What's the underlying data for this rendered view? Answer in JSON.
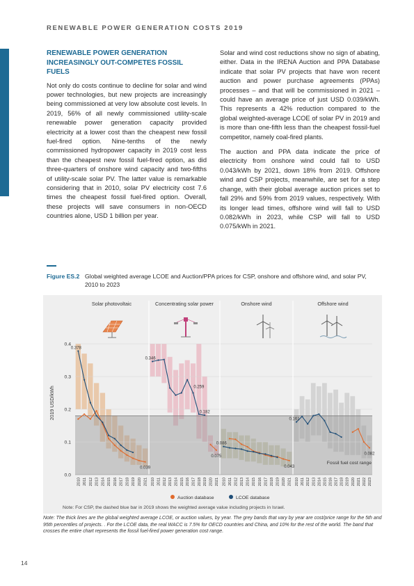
{
  "header": {
    "title": "RENEWABLE POWER GENERATION COSTS 2019"
  },
  "section": {
    "heading": "RENEWABLE POWER GENERATION INCREASINGLY OUT-COMPETES FOSSIL FUELS",
    "para1": "Not only do costs continue to decline for solar and wind power technologies, but new projects are increasingly being commissioned at very low absolute cost levels. In 2019, 56% of all newly commissioned utility-scale renewable power generation capacity provided electricity at a lower cost than the cheapest new fossil fuel-fired option. Nine-tenths of the newly commissioned hydropower capacity in 2019 cost less than the cheapest new fossil fuel-fired option, as did three-quarters of onshore wind capacity and two-fifths of utility-scale solar PV. The latter value is remarkable considering that in 2010, solar PV electricity cost 7.6 times the cheapest fossil fuel-fired option. Overall, these projects will save consumers in non-OECD countries alone, USD 1 billion per year.",
    "para2": "Solar and wind cost reductions show no sign of abating, either. Data in the IRENA Auction and PPA Database indicate that solar PV projects that have won recent auction and power purchase agreements (PPAs) processes – and that will be commissioned in 2021 – could have an average price of just USD 0.039/kWh. This represents a 42% reduction compared to the global weighted-average LCOE of solar PV in 2019 and is more than one-fifth less than the cheapest fossil-fuel competitor, namely coal-fired plants.",
    "para3": "The auction and PPA data indicate the price of electricity from onshore wind could fall to USD 0.043/kWh by 2021, down 18% from 2019. Offshore wind and CSP projects, meanwhile, are set for a step change, with their global average auction prices set to fall 29% and 59% from 2019 values, respectively. With its longer lead times, offshore wind will fall to USD 0.082/kWh in 2023, while CSP will fall to USD 0.075/kWh in 2021."
  },
  "figure": {
    "number": "Figure ES.2",
    "caption": "Global weighted average LCOE and Auction/PPA prices for CSP, onshore and offshore wind, and solar PV, 2010 to 2023",
    "chart_note": "Note: For CSP, the dashed blue bar in 2019 shows the weighted average value including projects in Israel.",
    "footnote": "Note: The thick lines are the global weighted average LCOE, or auction values, by year. The grey bands that vary by year are cost/price range for the 5th and 95th percentiles of projects. . For the LCOE data, the real WACC is 7.5% for OECD countries and China, and 10% for the rest of the world. The band that crosses the entire chart represents the fossil fuel-fired power generation cost range."
  },
  "page": {
    "number": "14"
  },
  "chart_data": {
    "type": "line",
    "ylabel": "2019 USD/kWh",
    "ylim": [
      0,
      0.4
    ],
    "yticks": [
      "0.0",
      "0.1",
      "0.2",
      "0.3",
      "0.4"
    ],
    "fossil_band": {
      "low": 0.0,
      "high": 0.18,
      "label": "Fossil fuel cost range"
    },
    "legend": [
      {
        "name": "Auction database",
        "color": "#e06a2c"
      },
      {
        "name": "LCOE database",
        "color": "#1f4e78"
      }
    ],
    "panels": [
      {
        "name": "Solar photovoltaic",
        "years": [
          "2010",
          "2011",
          "2012",
          "2013",
          "2014",
          "2015",
          "2016",
          "2017",
          "2018",
          "2019",
          "2020",
          "2021"
        ],
        "lcoe": [
          0.378,
          0.29,
          0.22,
          0.18,
          0.16,
          0.12,
          0.11,
          0.09,
          0.075,
          0.068,
          null,
          null
        ],
        "auction": [
          0.17,
          0.185,
          0.17,
          0.195,
          0.155,
          0.11,
          0.09,
          0.073,
          0.06,
          0.05,
          0.043,
          0.039
        ],
        "band_low": [
          0.2,
          0.2,
          0.18,
          0.15,
          0.1,
          0.08,
          0.07,
          0.05,
          0.04,
          0.03,
          0.03,
          0.025
        ],
        "band_high": [
          0.4,
          0.37,
          0.34,
          0.28,
          0.25,
          0.2,
          0.18,
          0.15,
          0.12,
          0.11,
          0.09,
          0.08
        ],
        "labels": [
          {
            "text": "0.378",
            "i": 0,
            "v": 0.378
          },
          {
            "text": "0.039",
            "i": 11,
            "v": 0.039
          }
        ]
      },
      {
        "name": "Concentrating solar power",
        "years": [
          "2010",
          "2011",
          "2012",
          "2013",
          "2014",
          "2015",
          "2016",
          "2017",
          "2018",
          "2019",
          "2020",
          "2021"
        ],
        "lcoe": [
          0.346,
          0.35,
          0.352,
          0.265,
          0.243,
          0.25,
          0.29,
          0.25,
          0.185,
          0.182,
          null,
          null
        ],
        "auction": [
          null,
          null,
          null,
          null,
          null,
          null,
          null,
          null,
          null,
          null,
          0.092,
          0.075
        ],
        "band_low": [
          0.3,
          0.3,
          0.28,
          0.19,
          0.15,
          0.17,
          0.2,
          0.19,
          0.11,
          0.1,
          0.07,
          0.06
        ],
        "band_high": [
          0.4,
          0.4,
          0.4,
          0.36,
          0.32,
          0.34,
          0.35,
          0.34,
          0.4,
          0.3,
          0.12,
          0.09
        ],
        "labels": [
          {
            "text": "0.346",
            "i": 0,
            "v": 0.346
          },
          {
            "text": "0.259",
            "i": 8,
            "v": 0.259
          },
          {
            "text": "0.182",
            "i": 9,
            "v": 0.182
          },
          {
            "text": "0.075",
            "i": 11,
            "v": 0.075
          }
        ]
      },
      {
        "name": "Onshore wind",
        "years": [
          "2010",
          "2011",
          "2012",
          "2013",
          "2014",
          "2015",
          "2016",
          "2017",
          "2018",
          "2019",
          "2020",
          "2021"
        ],
        "lcoe": [
          0.086,
          0.082,
          0.08,
          0.078,
          0.072,
          0.07,
          0.065,
          0.063,
          0.058,
          0.053,
          null,
          null
        ],
        "auction": [
          null,
          0.11,
          0.108,
          0.093,
          0.085,
          0.072,
          0.067,
          0.06,
          0.055,
          0.055,
          0.048,
          0.043
        ],
        "band_low": [
          0.05,
          0.05,
          0.05,
          0.045,
          0.04,
          0.04,
          0.035,
          0.03,
          0.03,
          0.03,
          0.025,
          0.025
        ],
        "band_high": [
          0.14,
          0.13,
          0.13,
          0.12,
          0.12,
          0.11,
          0.1,
          0.1,
          0.09,
          0.09,
          0.08,
          0.07
        ],
        "labels": [
          {
            "text": "0.086",
            "i": 0,
            "v": 0.086
          },
          {
            "text": "0.043",
            "i": 11,
            "v": 0.043
          }
        ]
      },
      {
        "name": "Offshore wind",
        "years": [
          "2010",
          "2011",
          "2012",
          "2013",
          "2014",
          "2015",
          "2016",
          "2017",
          "2018",
          "2019",
          "2020",
          "2021",
          "2022",
          "2023"
        ],
        "lcoe": [
          0.161,
          0.178,
          0.155,
          0.18,
          0.185,
          0.165,
          0.13,
          0.125,
          0.115,
          null,
          null,
          null,
          null,
          null
        ],
        "auction": [
          null,
          null,
          null,
          null,
          null,
          null,
          null,
          null,
          null,
          null,
          0.13,
          0.14,
          0.1,
          0.082
        ],
        "band_low": [
          0.1,
          0.11,
          0.1,
          0.12,
          0.12,
          0.1,
          0.08,
          0.07,
          0.07,
          0.06,
          0.06,
          0.06,
          0.05,
          0.05
        ],
        "band_high": [
          0.2,
          0.24,
          0.23,
          0.28,
          0.27,
          0.28,
          0.25,
          0.26,
          0.22,
          0.25,
          0.24,
          0.2,
          0.15,
          0.12
        ],
        "labels": [
          {
            "text": "0.161",
            "i": 0,
            "v": 0.161
          },
          {
            "text": "0.082",
            "i": 13,
            "v": 0.082
          }
        ]
      }
    ]
  }
}
